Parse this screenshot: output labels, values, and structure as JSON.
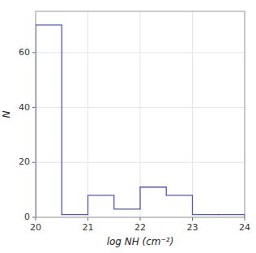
{
  "chart_data": {
    "type": "histogram",
    "bins": [
      20,
      20.5,
      21,
      21.5,
      22,
      22.5,
      23,
      23.5,
      24
    ],
    "values": [
      70,
      1,
      8,
      3,
      11,
      8,
      1,
      1
    ],
    "color": "#5555bb",
    "xlim": [
      20,
      24
    ],
    "ylim": [
      0,
      75
    ],
    "xticks": [
      20,
      21,
      22,
      23,
      24
    ],
    "yticks": [
      0,
      20,
      40,
      60
    ],
    "xlabel": "log NH (cm⁻²)",
    "ylabel": "N"
  }
}
